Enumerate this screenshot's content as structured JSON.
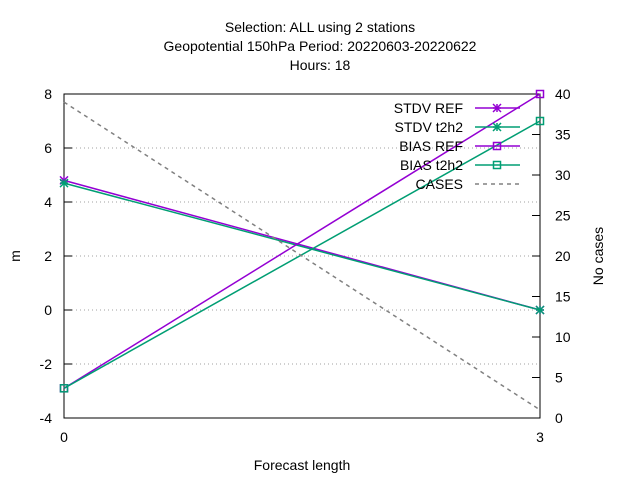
{
  "chart_data": {
    "type": "line",
    "title_lines": [
      "Selection: ALL using      2 stations",
      "Geopotential 150hPa   Period: 20220603-20220622",
      "Hours:  18"
    ],
    "xlabel": "Forecast length",
    "ylabel": "m",
    "y2label": "No cases",
    "x": [
      0,
      3
    ],
    "x_ticks": [
      "0",
      "3"
    ],
    "xlim": [
      0,
      3
    ],
    "ylim": [
      -4,
      8
    ],
    "y_ticks": [
      "-4",
      "-2",
      "0",
      "2",
      "4",
      "6",
      "8"
    ],
    "y2lim": [
      0,
      40
    ],
    "y2_ticks": [
      "0",
      "5",
      "10",
      "15",
      "20",
      "25",
      "30",
      "35",
      "40"
    ],
    "grid": "horizontal dotted",
    "legend_position": "top-right",
    "series": [
      {
        "name": "STDV REF",
        "axis": "y",
        "values": [
          4.8,
          0.0
        ],
        "color": "#9400d3",
        "marker": "star",
        "dash": false
      },
      {
        "name": "STDV t2h2",
        "axis": "y",
        "values": [
          4.7,
          0.0
        ],
        "color": "#009e73",
        "marker": "star",
        "dash": false
      },
      {
        "name": "BIAS REF",
        "axis": "y",
        "values": [
          -2.9,
          8.0
        ],
        "color": "#9400d3",
        "marker": "square",
        "dash": false
      },
      {
        "name": "BIAS t2h2",
        "axis": "y",
        "values": [
          -2.9,
          7.0
        ],
        "color": "#009e73",
        "marker": "square",
        "dash": false
      },
      {
        "name": "CASES",
        "axis": "y2",
        "values": [
          39,
          1
        ],
        "color": "#808080",
        "marker": "none",
        "dash": true
      }
    ]
  }
}
